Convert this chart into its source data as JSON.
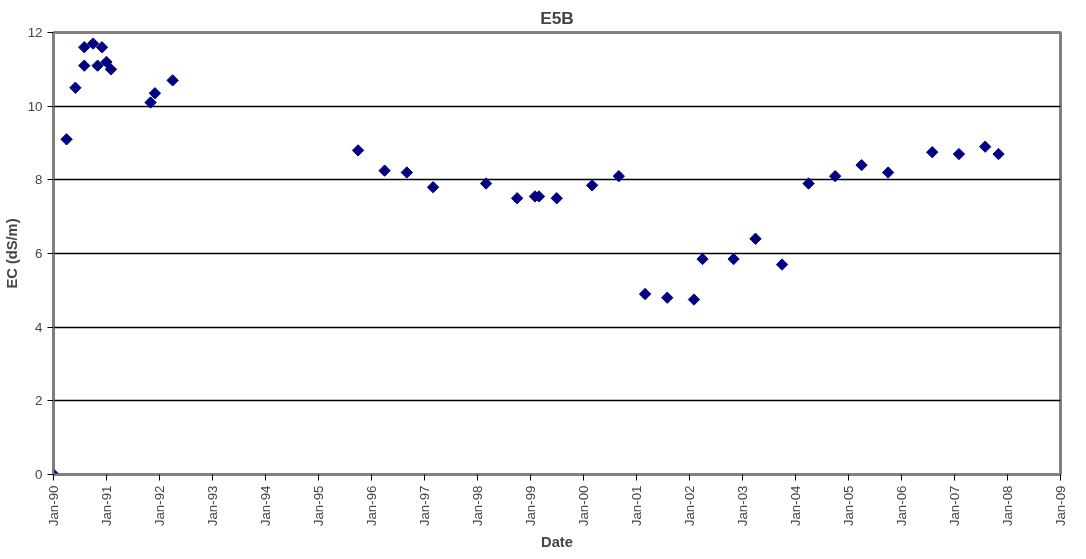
{
  "chart_data": {
    "type": "scatter",
    "title": "E5B",
    "xlabel": "Date",
    "ylabel": "EC (dS/m)",
    "x": [
      "1990-01",
      "1990-04",
      "1990-06",
      "1990-08",
      "1990-08",
      "1990-10",
      "1990-11",
      "1990-12",
      "1991-01",
      "1991-02",
      "1991-11",
      "1991-12",
      "1992-04",
      "1995-10",
      "1996-04",
      "1996-09",
      "1997-03",
      "1998-03",
      "1998-10",
      "1999-02",
      "1999-03",
      "1999-07",
      "2000-03",
      "2000-09",
      "2001-03",
      "2001-08",
      "2002-02",
      "2002-04",
      "2002-11",
      "2003-04",
      "2003-10",
      "2004-04",
      "2004-10",
      "2005-04",
      "2005-10",
      "2006-08",
      "2007-02",
      "2007-08",
      "2007-11"
    ],
    "series": [
      {
        "color": "#000080",
        "values": [
          0,
          9.1,
          10.5,
          11.1,
          11.6,
          11.7,
          11.1,
          11.6,
          11.2,
          11.0,
          10.1,
          10.35,
          10.7,
          8.8,
          8.25,
          8.2,
          7.8,
          7.9,
          7.5,
          7.55,
          7.55,
          7.5,
          7.85,
          8.1,
          4.9,
          4.8,
          4.75,
          5.85,
          5.85,
          6.4,
          5.7,
          7.9,
          8.1,
          8.4,
          8.2,
          8.75,
          8.7,
          8.9,
          8.7
        ]
      }
    ],
    "xlim": [
      "1990-01",
      "2009-01"
    ],
    "xticks": [
      {
        "value": "1990-01",
        "label": "Jan-90"
      },
      {
        "value": "1991-01",
        "label": "Jan-91"
      },
      {
        "value": "1992-01",
        "label": "Jan-92"
      },
      {
        "value": "1993-01",
        "label": "Jan-93"
      },
      {
        "value": "1994-01",
        "label": "Jan-94"
      },
      {
        "value": "1995-01",
        "label": "Jan-95"
      },
      {
        "value": "1996-01",
        "label": "Jan-96"
      },
      {
        "value": "1997-01",
        "label": "Jan-97"
      },
      {
        "value": "1998-01",
        "label": "Jan-98"
      },
      {
        "value": "1999-01",
        "label": "Jan-99"
      },
      {
        "value": "2000-01",
        "label": "Jan-00"
      },
      {
        "value": "2001-01",
        "label": "Jan-01"
      },
      {
        "value": "2002-01",
        "label": "Jan-02"
      },
      {
        "value": "2003-01",
        "label": "Jan-03"
      },
      {
        "value": "2004-01",
        "label": "Jan-04"
      },
      {
        "value": "2005-01",
        "label": "Jan-05"
      },
      {
        "value": "2006-01",
        "label": "Jan-06"
      },
      {
        "value": "2007-01",
        "label": "Jan-07"
      },
      {
        "value": "2008-01",
        "label": "Jan-08"
      },
      {
        "value": "2009-01",
        "label": "Jan-09"
      }
    ],
    "ylim": [
      0,
      12
    ],
    "yticks": [
      0,
      2,
      4,
      6,
      8,
      10,
      12
    ],
    "grid": "y",
    "marker": "diamond"
  }
}
